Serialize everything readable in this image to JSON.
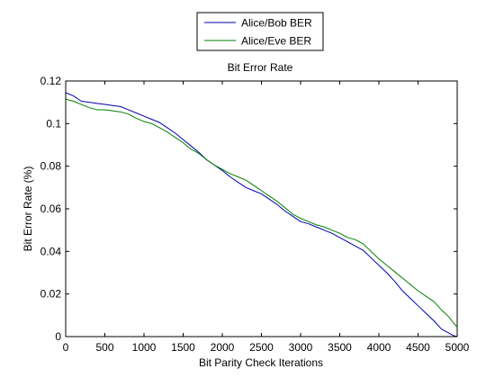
{
  "chart_data": {
    "type": "line",
    "title": "Bit Error Rate",
    "xlabel": "Bit Parity Check Iterations",
    "ylabel": "Bit Error Rate (%)",
    "xlim": [
      0,
      5000
    ],
    "ylim": [
      0,
      0.12
    ],
    "xticks": [
      0,
      500,
      1000,
      1500,
      2000,
      2500,
      3000,
      3500,
      4000,
      4500,
      5000
    ],
    "xtick_labels": [
      "0",
      "500",
      "1000",
      "1500",
      "2000",
      "2500",
      "3000",
      "3500",
      "4000",
      "4500",
      "5000"
    ],
    "yticks": [
      0,
      0.02,
      0.04,
      0.06,
      0.08,
      0.1,
      0.12
    ],
    "ytick_labels": [
      "0",
      "0.02",
      "0.04",
      "0.06",
      "0.08",
      "0.1",
      "0.12"
    ],
    "grid": false,
    "legend_position": "top-center (outside plot)",
    "series": [
      {
        "name": "Alice/Bob BER",
        "color": "#0000b0",
        "x": [
          0,
          100,
          200,
          300,
          400,
          500,
          600,
          700,
          800,
          900,
          1000,
          1100,
          1200,
          1300,
          1400,
          1500,
          1600,
          1700,
          1800,
          1900,
          2000,
          2100,
          2200,
          2300,
          2400,
          2500,
          2600,
          2700,
          2800,
          2900,
          3000,
          3100,
          3200,
          3300,
          3400,
          3500,
          3600,
          3700,
          3800,
          3900,
          4000,
          4100,
          4200,
          4300,
          4400,
          4500,
          4600,
          4700,
          4800,
          4900,
          4950,
          5000
        ],
        "y": [
          0.1145,
          0.113,
          0.1105,
          0.11,
          0.1095,
          0.109,
          0.1085,
          0.108,
          0.1065,
          0.105,
          0.1035,
          0.102,
          0.1005,
          0.098,
          0.0955,
          0.0925,
          0.0895,
          0.0865,
          0.083,
          0.0805,
          0.078,
          0.075,
          0.0725,
          0.07,
          0.0685,
          0.067,
          0.0645,
          0.062,
          0.059,
          0.0565,
          0.054,
          0.053,
          0.0515,
          0.05,
          0.0485,
          0.0465,
          0.0445,
          0.0425,
          0.0405,
          0.037,
          0.0335,
          0.03,
          0.026,
          0.0215,
          0.018,
          0.0145,
          0.011,
          0.0075,
          0.0035,
          0.0015,
          0.0005,
          0.0
        ]
      },
      {
        "name": "Alice/Eve BER",
        "color": "#008000",
        "x": [
          0,
          100,
          200,
          300,
          400,
          500,
          600,
          700,
          800,
          900,
          1000,
          1100,
          1200,
          1300,
          1400,
          1500,
          1600,
          1700,
          1800,
          1900,
          2000,
          2100,
          2200,
          2300,
          2400,
          2500,
          2600,
          2700,
          2800,
          2900,
          3000,
          3100,
          3200,
          3300,
          3400,
          3500,
          3600,
          3700,
          3800,
          3900,
          4000,
          4100,
          4200,
          4300,
          4400,
          4500,
          4600,
          4700,
          4800,
          4900,
          4950,
          5000
        ],
        "y": [
          0.1115,
          0.1105,
          0.109,
          0.1075,
          0.1065,
          0.1065,
          0.106,
          0.1055,
          0.1045,
          0.1025,
          0.101,
          0.1,
          0.098,
          0.096,
          0.0935,
          0.091,
          0.088,
          0.086,
          0.083,
          0.0805,
          0.0785,
          0.0765,
          0.075,
          0.0735,
          0.071,
          0.0685,
          0.066,
          0.0635,
          0.0605,
          0.0575,
          0.0555,
          0.054,
          0.0525,
          0.0515,
          0.05,
          0.0485,
          0.0465,
          0.0455,
          0.0435,
          0.04,
          0.0365,
          0.0335,
          0.0305,
          0.0275,
          0.0245,
          0.0215,
          0.019,
          0.0165,
          0.0125,
          0.009,
          0.0065,
          0.0045
        ]
      }
    ]
  }
}
